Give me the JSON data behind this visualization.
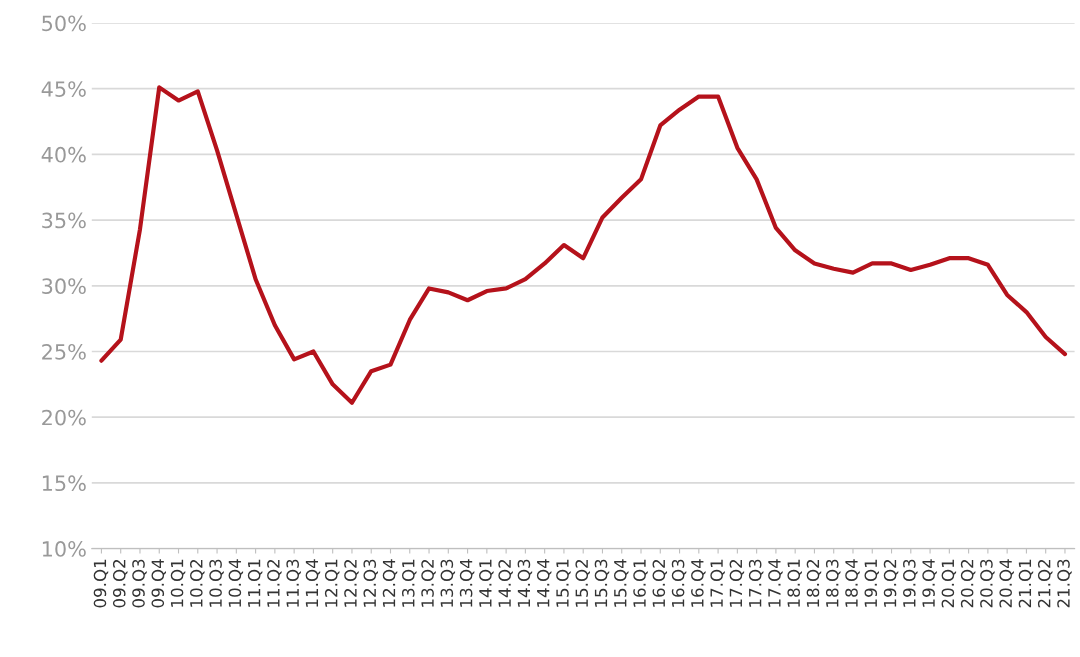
{
  "chart_data": {
    "type": "line",
    "categories": [
      "09.Q1",
      "09.Q2",
      "09.Q3",
      "09.Q4",
      "10.Q1",
      "10.Q2",
      "10.Q3",
      "10.Q4",
      "11.Q1",
      "11.Q2",
      "11.Q3",
      "11.Q4",
      "12.Q1",
      "12.Q2",
      "12.Q3",
      "12.Q4",
      "13.Q1",
      "13.Q2",
      "13.Q3",
      "13.Q4",
      "14.Q1",
      "14.Q2",
      "14.Q3",
      "14.Q4",
      "15.Q1",
      "15.Q2",
      "15.Q3",
      "15.Q4",
      "16.Q1",
      "16.Q2",
      "16.Q3",
      "16.Q4",
      "17.Q1",
      "17.Q2",
      "17.Q3",
      "17.Q4",
      "18.Q1",
      "18.Q2",
      "18.Q3",
      "18.Q4",
      "19.Q1",
      "19.Q2",
      "19.Q3",
      "19.Q4",
      "20.Q1",
      "20.Q2",
      "20.Q3",
      "20.Q4",
      "21.Q1",
      "21.Q2",
      "21.Q3"
    ],
    "series": [
      {
        "color": "#b5121b",
        "values": [
          24.3,
          25.9,
          34.3,
          45.1,
          44.1,
          44.8,
          40.3,
          35.4,
          30.5,
          27.0,
          24.4,
          25.0,
          22.5,
          21.1,
          23.5,
          24.0,
          27.4,
          29.8,
          29.5,
          28.9,
          29.6,
          29.8,
          30.5,
          31.7,
          33.1,
          32.1,
          35.2,
          36.7,
          38.1,
          42.2,
          43.4,
          44.4,
          44.4,
          40.5,
          38.1,
          34.4,
          32.7,
          31.7,
          31.3,
          31.0,
          31.7,
          31.7,
          31.2,
          31.6,
          32.1,
          32.1,
          31.6,
          29.3,
          28.0,
          26.1,
          24.8
        ]
      }
    ],
    "ylim": [
      10,
      50
    ],
    "yticks": [
      {
        "value": 10,
        "label": "10%"
      },
      {
        "value": 15,
        "label": "15%"
      },
      {
        "value": 20,
        "label": "20%"
      },
      {
        "value": 25,
        "label": "25%"
      },
      {
        "value": 30,
        "label": "30%"
      },
      {
        "value": 35,
        "label": "35%"
      },
      {
        "value": 40,
        "label": "40%"
      },
      {
        "value": 45,
        "label": "45%"
      },
      {
        "value": 50,
        "label": "50%"
      }
    ],
    "grid": "y",
    "marker": "none",
    "line_style": "solid"
  }
}
